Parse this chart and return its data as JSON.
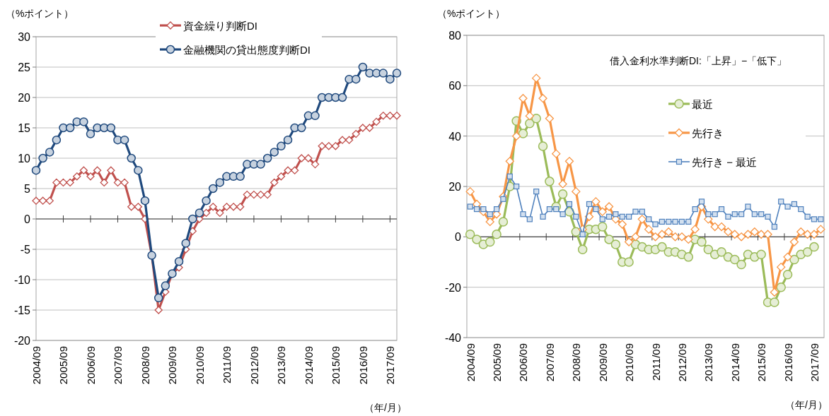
{
  "chart_data": [
    {
      "type": "line",
      "ylabel": "（%ポイント）",
      "xlabel": "（年/月）",
      "categories": [
        "2004/09",
        null,
        null,
        null,
        "2005/09",
        null,
        null,
        null,
        "2006/09",
        null,
        null,
        null,
        "2007/09",
        null,
        null,
        null,
        "2008/09",
        null,
        null,
        null,
        "2009/09",
        null,
        null,
        null,
        "2010/09",
        null,
        null,
        null,
        "2011/09",
        null,
        null,
        null,
        "2012/09",
        null,
        null,
        null,
        "2013/09",
        null,
        null,
        null,
        "2014/09",
        null,
        null,
        null,
        "2015/09",
        null,
        null,
        null,
        "2016/09",
        null,
        null,
        null,
        "2017/09",
        null
      ],
      "series": [
        {
          "name": "資金繰り判断DI",
          "color": "#c0504d",
          "marker": "diamond",
          "values": [
            3,
            3,
            3,
            6,
            6,
            6,
            7,
            8,
            7,
            8,
            6,
            8,
            6,
            6,
            2,
            2,
            0,
            -6,
            -15,
            -12,
            -9,
            -8,
            -5,
            -2,
            0,
            1,
            2,
            1,
            2,
            2,
            2,
            4,
            4,
            4,
            4,
            6,
            7,
            8,
            8,
            10,
            10,
            9,
            12,
            12,
            12,
            13,
            13,
            14,
            15,
            15,
            16,
            17,
            17,
            17
          ]
        },
        {
          "name": "金融機関の貸出態度判断DI",
          "color": "#1f497d",
          "marker": "circle",
          "values": [
            8,
            10,
            11,
            13,
            15,
            15,
            16,
            16,
            14,
            15,
            15,
            15,
            13,
            13,
            10,
            8,
            3,
            -6,
            -13,
            -11,
            -9,
            -7,
            -4,
            0,
            1,
            3,
            5,
            6,
            7,
            7,
            7,
            9,
            9,
            9,
            10,
            11,
            12,
            13,
            15,
            15,
            17,
            17,
            20,
            20,
            20,
            20,
            23,
            23,
            25,
            24,
            24,
            24,
            23,
            24
          ]
        }
      ],
      "ylim": [
        -20,
        30
      ],
      "yticks": [
        -20,
        -15,
        -10,
        -5,
        0,
        5,
        10,
        15,
        20,
        25,
        30
      ],
      "grid": "y",
      "legend": "top"
    },
    {
      "type": "line",
      "ylabel": "（%ポイント）",
      "xlabel": "（年/月）",
      "annotations": [
        "借入金利水準判断DI:「上昇」−「低下」"
      ],
      "categories": [
        "2004/09",
        null,
        null,
        null,
        "2005/09",
        null,
        null,
        null,
        "2006/09",
        null,
        null,
        null,
        "2007/09",
        null,
        null,
        null,
        "2008/09",
        null,
        null,
        null,
        "2009/09",
        null,
        null,
        null,
        "2010/09",
        null,
        null,
        null,
        "2011/09",
        null,
        null,
        null,
        "2012/09",
        null,
        null,
        null,
        "2013/09",
        null,
        null,
        null,
        "2014/09",
        null,
        null,
        null,
        "2015/09",
        null,
        null,
        null,
        "2016/09",
        null,
        null,
        null,
        "2017/09",
        null
      ],
      "series": [
        {
          "name": "最近",
          "color": "#9bbb59",
          "marker": "circle",
          "values": [
            1,
            -1,
            -3,
            -2,
            1,
            6,
            20,
            46,
            41,
            45,
            47,
            36,
            22,
            12,
            17,
            10,
            2,
            -5,
            3,
            3,
            4,
            -1,
            -3,
            -10,
            -10,
            -3,
            -4,
            -5,
            -5,
            -4,
            -6,
            -6,
            -7,
            -8,
            -1,
            -2,
            -5,
            -7,
            -6,
            -8,
            -9,
            -11,
            -7,
            -8,
            -7,
            -26,
            -26,
            -20,
            -15,
            -9,
            -7,
            -6,
            -4,
            null
          ]
        },
        {
          "name": "先行き",
          "color": "#f79646",
          "marker": "diamond",
          "values": [
            18,
            13,
            10,
            6,
            9,
            16,
            30,
            40,
            55,
            48,
            63,
            55,
            47,
            33,
            21,
            30,
            18,
            3,
            8,
            14,
            10,
            12,
            7,
            5,
            -2,
            0,
            7,
            3,
            0,
            1,
            2,
            0,
            0,
            -1,
            3,
            12,
            7,
            4,
            4,
            2,
            1,
            0,
            1,
            2,
            1,
            1,
            -22,
            -12,
            -8,
            -2,
            2,
            1,
            1,
            3
          ]
        },
        {
          "name": "先行き − 最近",
          "color": "#4f81bd",
          "marker": "square",
          "values": [
            12,
            11,
            11,
            9,
            11,
            15,
            24,
            20,
            9,
            7,
            18,
            8,
            11,
            11,
            9,
            13,
            8,
            1,
            13,
            11,
            7,
            8,
            9,
            8,
            8,
            10,
            10,
            7,
            5,
            6,
            6,
            6,
            6,
            6,
            11,
            14,
            9,
            9,
            11,
            8,
            9,
            9,
            12,
            9,
            9,
            8,
            4,
            14,
            12,
            13,
            11,
            8,
            7,
            7
          ]
        }
      ],
      "ylim": [
        -40,
        80
      ],
      "yticks": [
        -40,
        -20,
        0,
        20,
        40,
        60,
        80
      ],
      "grid": "y",
      "legend": "right"
    }
  ]
}
